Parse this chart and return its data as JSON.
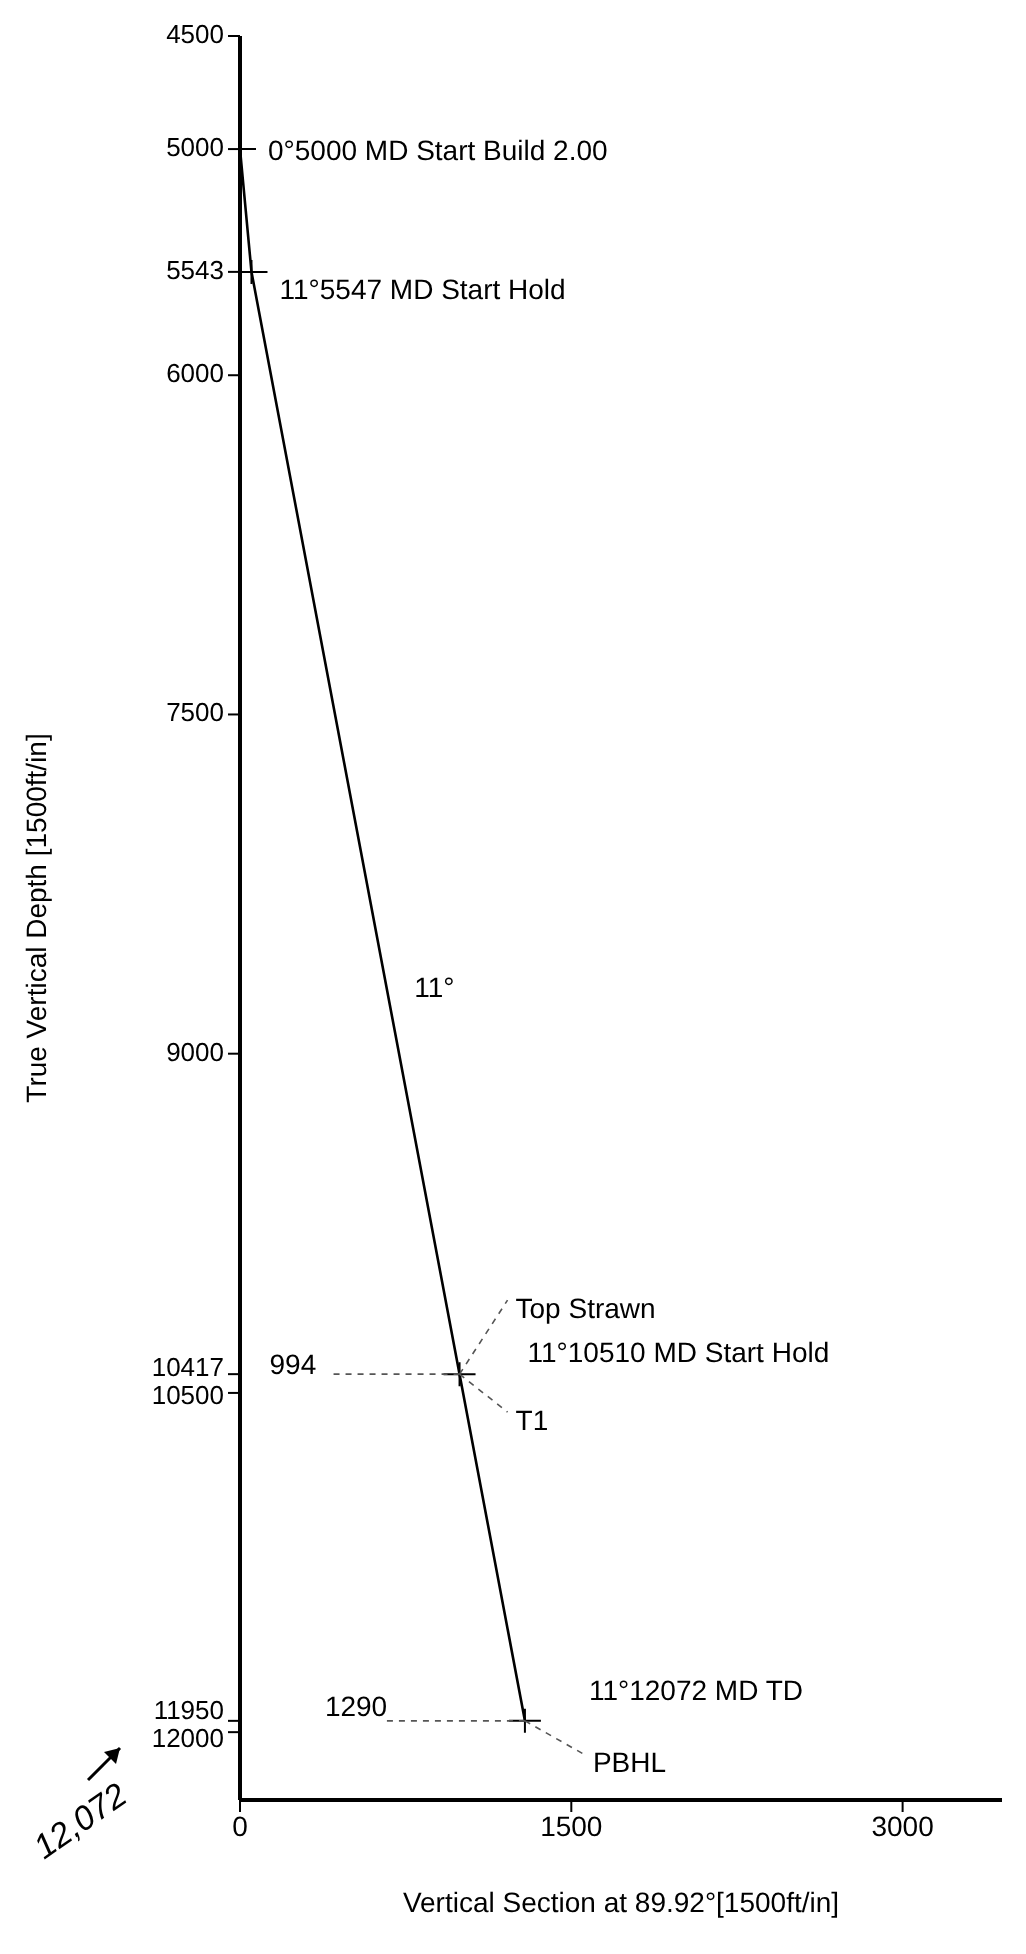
{
  "chart_data": {
    "type": "line",
    "xlabel": "Vertical Section at 89.92°[1500ft/in]",
    "ylabel": "True Vertical Depth [1500ft/in]",
    "x": [
      0,
      52,
      994,
      1290
    ],
    "series": [
      {
        "color": "#000000",
        "values": [
          5000,
          5543,
          10417,
          11950
        ]
      }
    ],
    "xlim": [
      0,
      3450
    ],
    "xticks": [
      0,
      1500,
      3000
    ],
    "ylim": [
      12300,
      4500
    ],
    "yticks": [
      4500,
      5000,
      5543,
      6000,
      7500,
      9000,
      10417,
      10500,
      11950,
      12000
    ],
    "grid": false,
    "legend": false,
    "marker": "cross",
    "line_style": "solid",
    "annotations": [
      {
        "text": "0°5000 MD Start Build 2.00",
        "x": 0,
        "y": 5000
      },
      {
        "text": "11°5547 MD Start Hold",
        "x": 52,
        "y": 5543
      },
      {
        "text": "11°",
        "x": 662,
        "y": 8680
      },
      {
        "text": "Top Strawn",
        "x": 994,
        "y": 10417
      },
      {
        "text": "11°10510 MD Start Hold",
        "x": 994,
        "y": 10417
      },
      {
        "text": "T1",
        "x": 994,
        "y": 10417
      },
      {
        "text": "994",
        "x": 994,
        "y": 10417
      },
      {
        "text": "1290",
        "x": 1290,
        "y": 11950
      },
      {
        "text": "11°12072 MD TD",
        "x": 1290,
        "y": 11950
      },
      {
        "text": "PBHL",
        "x": 1290,
        "y": 11950
      },
      "12,072"
    ]
  }
}
